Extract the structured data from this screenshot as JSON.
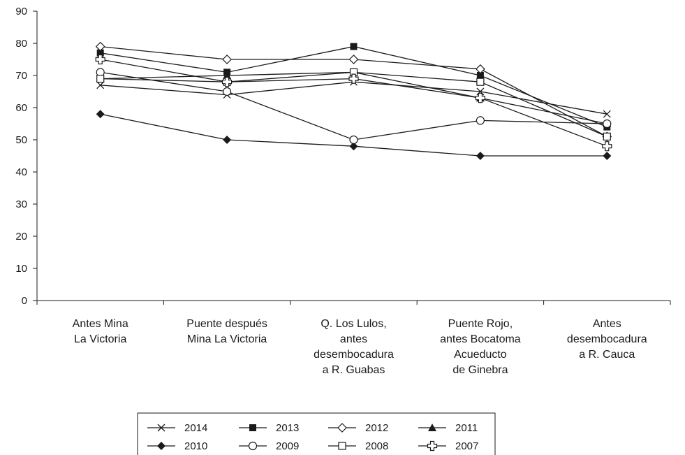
{
  "chart_data": {
    "type": "line",
    "categories": [
      [
        "Antes Mina",
        "La Victoria"
      ],
      [
        "Puente después",
        "Mina La Victoria"
      ],
      [
        "Q. Los Lulos,",
        "antes",
        "desembocadura",
        "a R. Guabas"
      ],
      [
        "Puente Rojo,",
        "antes Bocatoma",
        "Acueducto",
        "de Ginebra"
      ],
      [
        "Antes",
        "desembocadura",
        "a R. Cauca"
      ]
    ],
    "ylim": [
      0,
      90
    ],
    "yticks": [
      "0",
      "10",
      "20",
      "30",
      "40",
      "50",
      "60",
      "70",
      "80",
      "90"
    ],
    "grid": false,
    "legend_position": "bottom",
    "series": [
      {
        "name": "2014",
        "marker": "cross",
        "values": [
          67,
          64,
          68,
          65,
          58
        ]
      },
      {
        "name": "2013",
        "marker": "square-filled",
        "values": [
          77,
          71,
          79,
          70,
          54
        ]
      },
      {
        "name": "2012",
        "marker": "diamond-open",
        "values": [
          79,
          75,
          75,
          72,
          51
        ]
      },
      {
        "name": "2011",
        "marker": "triangle-filled",
        "values": [
          69,
          70,
          71,
          63,
          55
        ]
      },
      {
        "name": "2010",
        "marker": "diamond-filled",
        "values": [
          58,
          50,
          48,
          45,
          45
        ]
      },
      {
        "name": "2009",
        "marker": "circle-open",
        "values": [
          71,
          65,
          50,
          56,
          55
        ]
      },
      {
        "name": "2008",
        "marker": "square-open",
        "values": [
          69,
          68,
          71,
          68,
          51
        ]
      },
      {
        "name": "2007",
        "marker": "plus-open",
        "values": [
          75,
          68,
          69,
          63,
          48
        ]
      }
    ]
  }
}
